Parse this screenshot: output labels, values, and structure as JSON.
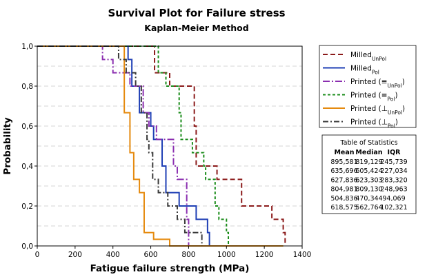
{
  "chart_data": {
    "type": "line",
    "title": "Survival Plot for Failure stress",
    "subtitle": "Kaplan-Meier Method",
    "xlabel": "Fatigue failure strength (MPa)",
    "ylabel": "Probability",
    "xlim": [
      0,
      1400
    ],
    "ylim": [
      0,
      1
    ],
    "x_ticks": [
      "0",
      "200",
      "400",
      "600",
      "800",
      "1000",
      "1200",
      "1400"
    ],
    "y_ticks": [
      "0,0",
      "0,2",
      "0,4",
      "0,6",
      "0,8",
      "1,0"
    ],
    "grid": "horizontal dashed",
    "legend_position": "right",
    "series": [
      {
        "legend": [
          {
            "text": "Milled"
          },
          {
            "text": "UnPol",
            "sub": true
          }
        ],
        "color": "#8b1a1a",
        "dash": "7,4",
        "steps": [
          [
            600,
            1.0
          ],
          [
            620,
            0.867
          ],
          [
            700,
            0.8
          ],
          [
            830,
            0.6
          ],
          [
            840,
            0.4
          ],
          [
            950,
            0.333
          ],
          [
            1080,
            0.2
          ],
          [
            1240,
            0.133
          ],
          [
            1300,
            0.067
          ],
          [
            1310,
            0
          ]
        ]
      },
      {
        "legend": [
          {
            "text": "Milled"
          },
          {
            "text": "Pol",
            "sub": true
          }
        ],
        "color": "#1f3fb5",
        "dash": "",
        "steps": [
          [
            440,
            1.0
          ],
          [
            480,
            0.933
          ],
          [
            500,
            0.8
          ],
          [
            540,
            0.667
          ],
          [
            600,
            0.6
          ],
          [
            615,
            0.533
          ],
          [
            660,
            0.4
          ],
          [
            680,
            0.267
          ],
          [
            750,
            0.2
          ],
          [
            840,
            0.133
          ],
          [
            900,
            0.067
          ],
          [
            910,
            0
          ]
        ]
      },
      {
        "legend": [
          {
            "text": "Printed ("
          },
          {
            "text": "≡",
            "sub": false
          },
          {
            "text": "UnPol",
            "sub": true
          },
          {
            "text": ")"
          }
        ],
        "color": "#8b2fb0",
        "dash": "10,3,2,3",
        "steps": [
          [
            340,
            1.0
          ],
          [
            345,
            0.933
          ],
          [
            400,
            0.867
          ],
          [
            490,
            0.8
          ],
          [
            560,
            0.667
          ],
          [
            590,
            0.6
          ],
          [
            630,
            0.533
          ],
          [
            720,
            0.4
          ],
          [
            740,
            0.333
          ],
          [
            790,
            0.133
          ],
          [
            800,
            0
          ]
        ]
      },
      {
        "legend": [
          {
            "text": "Printed ("
          },
          {
            "text": "≡",
            "sub": false
          },
          {
            "text": "Pol",
            "sub": true
          },
          {
            "text": ")"
          }
        ],
        "color": "#1a8c1a",
        "dash": "4,3",
        "steps": [
          [
            625,
            1.0
          ],
          [
            640,
            0.867
          ],
          [
            680,
            0.8
          ],
          [
            750,
            0.667
          ],
          [
            760,
            0.533
          ],
          [
            820,
            0.467
          ],
          [
            880,
            0.4
          ],
          [
            890,
            0.333
          ],
          [
            940,
            0.2
          ],
          [
            960,
            0.133
          ],
          [
            1000,
            0.067
          ],
          [
            1010,
            0
          ]
        ]
      },
      {
        "legend": [
          {
            "text": "Printed ("
          },
          {
            "text": "⊥",
            "sub": false
          },
          {
            "text": "UnPol",
            "sub": true
          },
          {
            "text": ")"
          }
        ],
        "color": "#e58a0e",
        "dash": "",
        "steps": [
          [
            440,
            1.0
          ],
          [
            460,
            0.667
          ],
          [
            490,
            0.467
          ],
          [
            510,
            0.333
          ],
          [
            540,
            0.267
          ],
          [
            565,
            0.067
          ],
          [
            615,
            0.033
          ],
          [
            700,
            0
          ],
          [
            1300,
            0
          ]
        ]
      },
      {
        "legend": [
          {
            "text": "Printed ("
          },
          {
            "text": "⊥",
            "sub": false
          },
          {
            "text": "Pol",
            "sub": true
          },
          {
            "text": ")"
          }
        ],
        "color": "#3a3a3a",
        "dash": "8,3,2,3",
        "steps": [
          [
            365,
            1.0
          ],
          [
            430,
            0.933
          ],
          [
            470,
            0.867
          ],
          [
            520,
            0.8
          ],
          [
            550,
            0.667
          ],
          [
            580,
            0.533
          ],
          [
            590,
            0.467
          ],
          [
            610,
            0.333
          ],
          [
            640,
            0.267
          ],
          [
            690,
            0.2
          ],
          [
            740,
            0.133
          ],
          [
            780,
            0.067
          ],
          [
            870,
            0
          ]
        ]
      }
    ],
    "stats_table": {
      "title": "Table of Statistics",
      "headers": [
        "Mean",
        "Median",
        "IQR"
      ],
      "rows": [
        [
          "895,581",
          "819,129",
          "245,739"
        ],
        [
          "635,696",
          "605,424",
          "227,034"
        ],
        [
          "627,836",
          "623,303",
          "283,320"
        ],
        [
          "804,981",
          "809,130",
          "248,963"
        ],
        [
          "504,836",
          "470,344",
          "94,069"
        ],
        [
          "618,575",
          "562,764",
          "102,321"
        ]
      ]
    }
  }
}
